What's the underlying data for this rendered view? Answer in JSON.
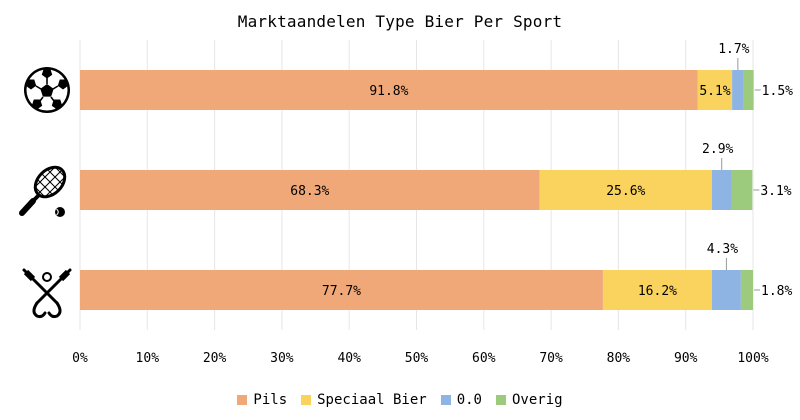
{
  "chart_data": {
    "type": "bar",
    "orientation": "horizontal",
    "stacked": true,
    "title": "Marktaandelen Type Bier Per Sport",
    "categories": [
      "Voetbal",
      "Tennis",
      "Hockey"
    ],
    "category_icons": [
      "soccer-ball-icon",
      "tennis-racket-icon",
      "hockey-sticks-icon"
    ],
    "series": [
      {
        "name": "Pils",
        "color": "#f0a878",
        "values": [
          91.8,
          68.3,
          77.7
        ]
      },
      {
        "name": "Speciaal Bier",
        "color": "#f9d35e",
        "values": [
          5.1,
          25.6,
          16.2
        ]
      },
      {
        "name": "0.0",
        "color": "#8db4e2",
        "values": [
          1.7,
          2.9,
          4.3
        ]
      },
      {
        "name": "Overig",
        "color": "#9dcb7e",
        "values": [
          1.5,
          3.1,
          1.8
        ]
      }
    ],
    "data_labels": [
      [
        "91.8%",
        "5.1%",
        "1.7%",
        "1.5%"
      ],
      [
        "68.3%",
        "25.6%",
        "2.9%",
        "3.1%"
      ],
      [
        "77.7%",
        "16.2%",
        "4.3%",
        "1.8%"
      ]
    ],
    "xlim": [
      0,
      100
    ],
    "x_ticks": [
      "0%",
      "10%",
      "20%",
      "30%",
      "40%",
      "50%",
      "60%",
      "70%",
      "80%",
      "90%",
      "100%"
    ],
    "grid": true,
    "legend_position": "bottom"
  }
}
